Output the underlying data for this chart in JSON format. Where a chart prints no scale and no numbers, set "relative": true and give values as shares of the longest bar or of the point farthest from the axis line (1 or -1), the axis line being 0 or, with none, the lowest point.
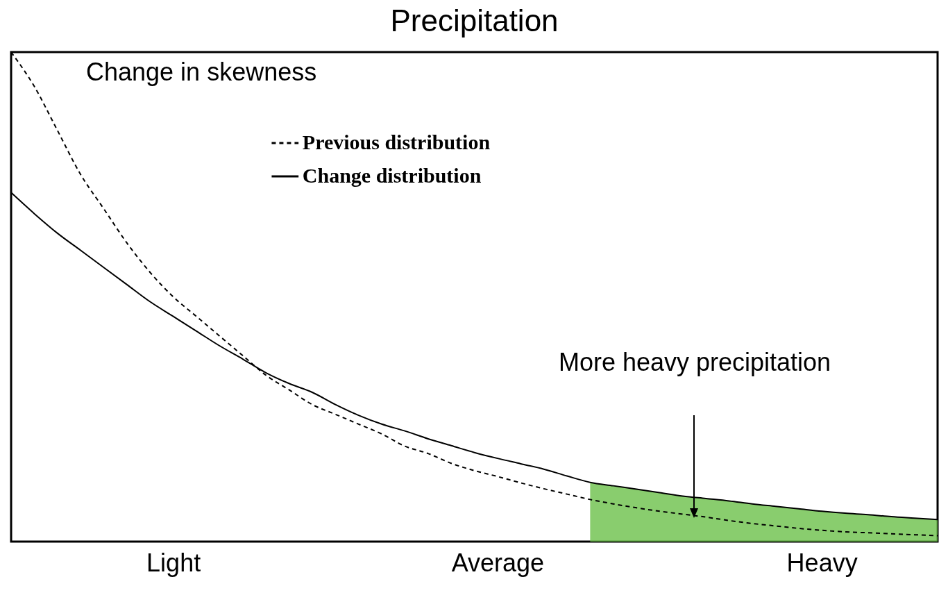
{
  "chart_data": {
    "type": "line",
    "title": "Precipitation",
    "relative": true,
    "categories": [
      null,
      null,
      null,
      null,
      null,
      null,
      null,
      "Light",
      null,
      null,
      null,
      null,
      null,
      null,
      null,
      null,
      null,
      null,
      null,
      null,
      null,
      "Average",
      null,
      null,
      null,
      null,
      null,
      null,
      null,
      null,
      null,
      null,
      null,
      null,
      null,
      "Heavy",
      null,
      null,
      null,
      null,
      null
    ],
    "tick_labels": "x",
    "legend": "top",
    "series": [
      {
        "name": "Previous distribution",
        "color": "#000000",
        "line_style": "dashed",
        "values": [
          1.0,
          0.93,
          0.84,
          0.75,
          0.68,
          0.61,
          0.55,
          0.5,
          0.46,
          0.42,
          0.38,
          0.34,
          0.31,
          0.28,
          0.26,
          0.24,
          0.22,
          0.195,
          0.18,
          0.16,
          0.145,
          0.133,
          0.12,
          0.108,
          0.097,
          0.086,
          0.077,
          0.069,
          0.062,
          0.056,
          0.05,
          0.043,
          0.037,
          0.032,
          0.027,
          0.023,
          0.02,
          0.018,
          0.016,
          0.014,
          0.012
        ]
      },
      {
        "name": "Change distribution",
        "color": "#000000",
        "line_style": "solid",
        "values": [
          0.713,
          0.67,
          0.63,
          0.595,
          0.56,
          0.525,
          0.49,
          0.46,
          0.43,
          0.4,
          0.373,
          0.345,
          0.323,
          0.305,
          0.28,
          0.258,
          0.24,
          0.226,
          0.21,
          0.196,
          0.182,
          0.17,
          0.159,
          0.148,
          0.134,
          0.121,
          0.114,
          0.107,
          0.1,
          0.093,
          0.088,
          0.083,
          0.077,
          0.072,
          0.067,
          0.062,
          0.058,
          0.055,
          0.051,
          0.048,
          0.045
        ]
      },
      {
        "type": "area",
        "color": "#6cc04a",
        "values": [
          null,
          null,
          null,
          null,
          null,
          null,
          null,
          null,
          null,
          null,
          null,
          null,
          null,
          null,
          null,
          null,
          null,
          null,
          null,
          null,
          null,
          null,
          null,
          null,
          null,
          0.121,
          0.114,
          0.107,
          0.1,
          0.093,
          0.088,
          0.083,
          0.077,
          0.072,
          0.067,
          0.062,
          0.058,
          0.055,
          0.051,
          0.048,
          0.045
        ]
      }
    ],
    "annotations": [
      "Change in skewness",
      "More heavy precipitation"
    ]
  }
}
